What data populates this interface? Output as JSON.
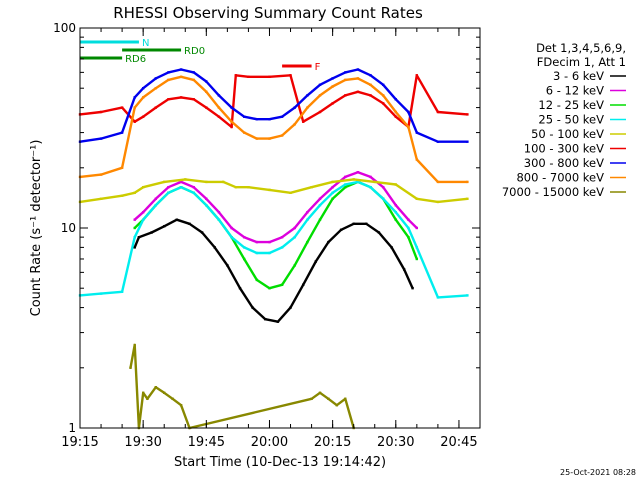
{
  "chart_data": {
    "type": "line",
    "title": "RHESSI Observing Summary Count Rates",
    "xlabel": "Start Time (10-Dec-13 19:14:42)",
    "ylabel": "Count Rate (s⁻¹ detector⁻¹)",
    "y_scale": "log",
    "ylim": [
      1,
      100
    ],
    "xlim": [
      "19:15",
      "20:50"
    ],
    "x_ticks": [
      "19:15",
      "19:30",
      "19:45",
      "20:00",
      "20:15",
      "20:30",
      "20:45"
    ],
    "y_ticks": [
      {
        "value": 1,
        "label": "1"
      },
      {
        "value": 10,
        "label": "10"
      },
      {
        "value": 100,
        "label": "100"
      }
    ],
    "legend_placement": "right",
    "legend_header": [
      "Det 1,3,4,5,6,9,",
      "FDecim 1, Att 1"
    ],
    "series": [
      {
        "name": "3 - 6 keV",
        "color": "#000000",
        "x": [
          "19:28",
          "19:29",
          "19:32",
          "19:35",
          "19:38",
          "19:41",
          "19:44",
          "19:47",
          "19:50",
          "19:53",
          "19:56",
          "19:59",
          "20:02",
          "20:05",
          "20:08",
          "20:11",
          "20:14",
          "20:17",
          "20:20",
          "20:23",
          "20:26",
          "20:29",
          "20:32",
          "20:34"
        ],
        "y": [
          8.0,
          9.0,
          9.5,
          10.2,
          11.0,
          10.5,
          9.5,
          8.0,
          6.5,
          5.0,
          4.0,
          3.5,
          3.4,
          4.0,
          5.2,
          6.8,
          8.5,
          9.8,
          10.5,
          10.5,
          9.5,
          8.0,
          6.2,
          5.0
        ]
      },
      {
        "name": "6 - 12 keV",
        "color": "#dd00dd",
        "x": [
          "19:28",
          "19:30",
          "19:33",
          "19:36",
          "19:39",
          "19:42",
          "19:45",
          "19:48",
          "19:51",
          "19:54",
          "19:57",
          "20:00",
          "20:03",
          "20:06",
          "20:09",
          "20:12",
          "20:15",
          "20:18",
          "20:21",
          "20:24",
          "20:27",
          "20:30",
          "20:33",
          "20:35"
        ],
        "y": [
          11,
          12,
          14,
          16,
          17,
          16,
          14,
          12,
          10,
          9,
          8.5,
          8.5,
          9,
          10,
          12,
          14,
          16,
          18,
          19,
          18,
          16,
          13,
          11,
          10
        ]
      },
      {
        "name": "12 - 25 keV",
        "color": "#00dd00",
        "x": [
          "19:28",
          "19:30",
          "19:33",
          "19:36",
          "19:39",
          "19:42",
          "19:45",
          "19:48",
          "19:51",
          "19:54",
          "19:57",
          "20:00",
          "20:03",
          "20:06",
          "20:09",
          "20:12",
          "20:15",
          "20:18",
          "20:21",
          "20:24",
          "20:27",
          "20:30",
          "20:33",
          "20:35"
        ],
        "y": [
          10,
          11,
          13,
          15,
          16,
          15,
          13,
          11,
          9,
          7,
          5.5,
          5,
          5.2,
          6.5,
          8.5,
          11,
          14,
          16,
          17,
          16,
          14,
          11,
          9,
          7
        ]
      },
      {
        "name": "25 - 50 keV",
        "color": "#00eeee",
        "x": [
          "19:15",
          "19:20",
          "19:25",
          "19:28",
          "19:30",
          "19:33",
          "19:36",
          "19:39",
          "19:42",
          "19:45",
          "19:48",
          "19:51",
          "19:54",
          "19:57",
          "20:00",
          "20:03",
          "20:06",
          "20:09",
          "20:12",
          "20:15",
          "20:18",
          "20:21",
          "20:24",
          "20:27",
          "20:30",
          "20:33",
          "20:35",
          "20:40",
          "20:47"
        ],
        "y": [
          4.6,
          4.7,
          4.8,
          9,
          11,
          13,
          15,
          16,
          15,
          13,
          11,
          9,
          8,
          7.5,
          7.5,
          8,
          9,
          11,
          13,
          15,
          16.5,
          17,
          16,
          14,
          12,
          10,
          8,
          4.5,
          4.6
        ]
      },
      {
        "name": "50 - 100 keV",
        "color": "#cccc00",
        "x": [
          "19:15",
          "19:20",
          "19:25",
          "19:28",
          "19:30",
          "19:35",
          "19:40",
          "19:45",
          "19:49",
          "19:52",
          "19:55",
          "20:00",
          "20:05",
          "20:10",
          "20:15",
          "20:20",
          "20:25",
          "20:30",
          "20:35",
          "20:40",
          "20:47"
        ],
        "y": [
          13.5,
          14,
          14.5,
          15,
          16,
          17,
          17.5,
          17,
          17,
          16,
          16,
          15.5,
          15,
          16,
          17,
          17.5,
          17,
          16.5,
          14,
          13.5,
          14
        ]
      },
      {
        "name": "100 - 300 keV",
        "color": "#ee0000",
        "x": [
          "19:15",
          "19:20",
          "19:25",
          "19:28",
          "19:30",
          "19:33",
          "19:36",
          "19:39",
          "19:42",
          "19:45",
          "19:48",
          "19:51",
          "19:52",
          "19:55",
          "20:00",
          "20:05",
          "20:08",
          "20:12",
          "20:15",
          "20:18",
          "20:21",
          "20:24",
          "20:27",
          "20:30",
          "20:33",
          "20:35",
          "20:40",
          "20:47"
        ],
        "y": [
          37,
          38,
          40,
          34,
          36,
          40,
          44,
          45,
          44,
          40,
          36,
          32,
          58,
          57,
          57,
          58,
          34,
          38,
          42,
          46,
          48,
          46,
          42,
          36,
          32,
          58,
          38,
          37
        ]
      },
      {
        "name": "300 - 800 keV",
        "color": "#0000ee",
        "x": [
          "19:15",
          "19:20",
          "19:25",
          "19:28",
          "19:30",
          "19:33",
          "19:36",
          "19:39",
          "19:42",
          "19:45",
          "19:48",
          "19:51",
          "19:54",
          "19:57",
          "20:00",
          "20:03",
          "20:06",
          "20:09",
          "20:12",
          "20:15",
          "20:18",
          "20:21",
          "20:24",
          "20:27",
          "20:30",
          "20:33",
          "20:35",
          "20:40",
          "20:47"
        ],
        "y": [
          27,
          28,
          30,
          45,
          50,
          56,
          60,
          62,
          60,
          54,
          46,
          40,
          36,
          35,
          35,
          36,
          40,
          46,
          52,
          56,
          60,
          62,
          58,
          52,
          44,
          38,
          30,
          27,
          27
        ]
      },
      {
        "name": "800 - 7000 keV",
        "color": "#ff8800",
        "x": [
          "19:15",
          "19:20",
          "19:25",
          "19:28",
          "19:30",
          "19:33",
          "19:36",
          "19:39",
          "19:42",
          "19:45",
          "19:48",
          "19:51",
          "19:54",
          "19:57",
          "20:00",
          "20:03",
          "20:06",
          "20:09",
          "20:12",
          "20:15",
          "20:18",
          "20:21",
          "20:24",
          "20:27",
          "20:30",
          "20:33",
          "20:35",
          "20:40",
          "20:47"
        ],
        "y": [
          18,
          18.5,
          20,
          40,
          45,
          50,
          55,
          57,
          55,
          48,
          40,
          34,
          30,
          28,
          28,
          29,
          33,
          40,
          46,
          51,
          55,
          56,
          52,
          46,
          38,
          32,
          22,
          17,
          17
        ]
      },
      {
        "name": "7000 - 15000 keV",
        "color": "#888800",
        "x": [
          "19:27",
          "19:28",
          "19:29",
          "19:30",
          "19:31",
          "19:33",
          "19:35",
          "19:37",
          "19:39",
          "19:41",
          "20:10",
          "20:12",
          "20:14",
          "20:16",
          "20:18",
          "20:20"
        ],
        "y": [
          2.0,
          2.6,
          1.0,
          1.5,
          1.4,
          1.6,
          1.5,
          1.4,
          1.3,
          1.0,
          1.4,
          1.5,
          1.4,
          1.3,
          1.4,
          1.0
        ]
      }
    ],
    "annotations": [
      {
        "label": "N",
        "color": "#00dddd",
        "x": [
          "19:15",
          "19:29"
        ]
      },
      {
        "label": "RD0",
        "color": "#008800",
        "x": [
          "19:25",
          "19:39"
        ]
      },
      {
        "label": "RD6",
        "color": "#008800",
        "x": [
          "19:15",
          "19:25"
        ]
      },
      {
        "label": "F",
        "color": "#ee0000",
        "x": [
          "20:03",
          "20:10"
        ]
      }
    ],
    "timestamp": "25-Oct-2021 08:28"
  }
}
